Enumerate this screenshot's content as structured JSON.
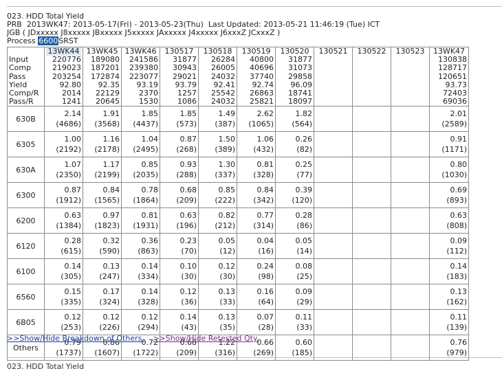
{
  "report": {
    "title": "023. HDD Total Yield",
    "prb_label": "PRB",
    "week": "2013WK47:",
    "date_range": "2013-05-17(Fri) - 2013-05-23(Thu)",
    "last_updated_label": "Last Updated:",
    "last_updated": "2013-05-21 11:46:19 (Tue) ICT",
    "jgb": "JGB ( JDxxxxx J8xxxxx JBxxxxx J5xxxxx JAxxxxx J4xxxxx J6xxxZ JCxxxZ )",
    "process_label": "Process",
    "process_code": "6600",
    "process_name": "SRST"
  },
  "columns": [
    "13WK44",
    "13WK45",
    "13WK46",
    "130517",
    "130518",
    "130519",
    "130520",
    "130521",
    "130522",
    "130523",
    "13WK47"
  ],
  "summary_labels": [
    "Input",
    "Comp",
    "Pass",
    "Yield",
    "Comp/R",
    "Pass/R"
  ],
  "summary_values": [
    [
      "220776",
      "219023",
      "203254",
      "92.80",
      "2014",
      "1241"
    ],
    [
      "189080",
      "187201",
      "172874",
      "92.35",
      "22129",
      "20645"
    ],
    [
      "241586",
      "239380",
      "223077",
      "93.19",
      "2370",
      "1530"
    ],
    [
      "31877",
      "30943",
      "29021",
      "93.79",
      "1257",
      "1086"
    ],
    [
      "26284",
      "26005",
      "24032",
      "92.41",
      "25542",
      "24032"
    ],
    [
      "40800",
      "40696",
      "37740",
      "92.74",
      "26863",
      "25821"
    ],
    [
      "31877",
      "31073",
      "29858",
      "96.09",
      "18741",
      "18097"
    ],
    [
      "",
      "",
      "",
      "",
      "",
      ""
    ],
    [
      "",
      "",
      "",
      "",
      "",
      ""
    ],
    [
      "",
      "",
      "",
      "",
      "",
      ""
    ],
    [
      "130838",
      "128717",
      "120651",
      "93.73",
      "72403",
      "69036"
    ]
  ],
  "rows": [
    {
      "label": "630B",
      "vals": [
        [
          "2.14",
          "(4686)"
        ],
        [
          "1.91",
          "(3568)"
        ],
        [
          "1.85",
          "(4437)"
        ],
        [
          "1.85",
          "(573)"
        ],
        [
          "1.49",
          "(387)"
        ],
        [
          "2.62",
          "(1065)"
        ],
        [
          "1.82",
          "(564)"
        ],
        [
          "",
          ""
        ],
        [
          "",
          ""
        ],
        [
          "",
          ""
        ],
        [
          "2.01",
          "(2589)"
        ]
      ]
    },
    {
      "label": "6305",
      "vals": [
        [
          "1.00",
          "(2192)"
        ],
        [
          "1.16",
          "(2178)"
        ],
        [
          "1.04",
          "(2495)"
        ],
        [
          "0.87",
          "(268)"
        ],
        [
          "1.50",
          "(389)"
        ],
        [
          "1.06",
          "(432)"
        ],
        [
          "0.26",
          "(82)"
        ],
        [
          "",
          ""
        ],
        [
          "",
          ""
        ],
        [
          "",
          ""
        ],
        [
          "0.91",
          "(1171)"
        ]
      ]
    },
    {
      "label": "630A",
      "vals": [
        [
          "1.07",
          "(2350)"
        ],
        [
          "1.17",
          "(2199)"
        ],
        [
          "0.85",
          "(2035)"
        ],
        [
          "0.93",
          "(288)"
        ],
        [
          "1.30",
          "(337)"
        ],
        [
          "0.81",
          "(328)"
        ],
        [
          "0.25",
          "(77)"
        ],
        [
          "",
          ""
        ],
        [
          "",
          ""
        ],
        [
          "",
          ""
        ],
        [
          "0.80",
          "(1030)"
        ]
      ]
    },
    {
      "label": "6300",
      "vals": [
        [
          "0.87",
          "(1912)"
        ],
        [
          "0.84",
          "(1565)"
        ],
        [
          "0.78",
          "(1864)"
        ],
        [
          "0.68",
          "(209)"
        ],
        [
          "0.85",
          "(222)"
        ],
        [
          "0.84",
          "(342)"
        ],
        [
          "0.39",
          "(120)"
        ],
        [
          "",
          ""
        ],
        [
          "",
          ""
        ],
        [
          "",
          ""
        ],
        [
          "0.69",
          "(893)"
        ]
      ]
    },
    {
      "label": "6200",
      "vals": [
        [
          "0.63",
          "(1384)"
        ],
        [
          "0.97",
          "(1823)"
        ],
        [
          "0.81",
          "(1931)"
        ],
        [
          "0.63",
          "(196)"
        ],
        [
          "0.82",
          "(212)"
        ],
        [
          "0.77",
          "(314)"
        ],
        [
          "0.28",
          "(86)"
        ],
        [
          "",
          ""
        ],
        [
          "",
          ""
        ],
        [
          "",
          ""
        ],
        [
          "0.63",
          "(808)"
        ]
      ]
    },
    {
      "label": "6120",
      "vals": [
        [
          "0.28",
          "(615)"
        ],
        [
          "0.32",
          "(590)"
        ],
        [
          "0.36",
          "(863)"
        ],
        [
          "0.23",
          "(70)"
        ],
        [
          "0.05",
          "(12)"
        ],
        [
          "0.04",
          "(16)"
        ],
        [
          "0.05",
          "(14)"
        ],
        [
          "",
          ""
        ],
        [
          "",
          ""
        ],
        [
          "",
          ""
        ],
        [
          "0.09",
          "(112)"
        ]
      ]
    },
    {
      "label": "6100",
      "vals": [
        [
          "0.14",
          "(305)"
        ],
        [
          "0.13",
          "(247)"
        ],
        [
          "0.14",
          "(334)"
        ],
        [
          "0.10",
          "(30)"
        ],
        [
          "0.12",
          "(30)"
        ],
        [
          "0.24",
          "(98)"
        ],
        [
          "0.08",
          "(25)"
        ],
        [
          "",
          ""
        ],
        [
          "",
          ""
        ],
        [
          "",
          ""
        ],
        [
          "0.14",
          "(183)"
        ]
      ]
    },
    {
      "label": "6560",
      "vals": [
        [
          "0.15",
          "(335)"
        ],
        [
          "0.17",
          "(324)"
        ],
        [
          "0.14",
          "(328)"
        ],
        [
          "0.12",
          "(36)"
        ],
        [
          "0.13",
          "(33)"
        ],
        [
          "0.16",
          "(64)"
        ],
        [
          "0.09",
          "(29)"
        ],
        [
          "",
          ""
        ],
        [
          "",
          ""
        ],
        [
          "",
          ""
        ],
        [
          "0.13",
          "(162)"
        ]
      ]
    },
    {
      "label": "6B05",
      "vals": [
        [
          "0.12",
          "(253)"
        ],
        [
          "0.12",
          "(226)"
        ],
        [
          "0.12",
          "(294)"
        ],
        [
          "0.14",
          "(43)"
        ],
        [
          "0.13",
          "(35)"
        ],
        [
          "0.07",
          "(28)"
        ],
        [
          "0.11",
          "(33)"
        ],
        [
          "",
          ""
        ],
        [
          "",
          ""
        ],
        [
          "",
          ""
        ],
        [
          "0.11",
          "(139)"
        ]
      ]
    },
    {
      "label": "Others",
      "vals": [
        [
          "0.79",
          "(1737)"
        ],
        [
          "0.86",
          "(1607)"
        ],
        [
          "0.72",
          "(1722)"
        ],
        [
          "0.68",
          "(209)"
        ],
        [
          "1.22",
          "(316)"
        ],
        [
          "0.66",
          "(269)"
        ],
        [
          "0.60",
          "(185)"
        ],
        [
          "",
          ""
        ],
        [
          "",
          ""
        ],
        [
          "",
          ""
        ],
        [
          "0.76",
          "(979)"
        ]
      ]
    }
  ],
  "links": {
    "breakdown": ">>Show/Hide Breakdown of Others.",
    "retested": ">>Show/Hide Retested Qty."
  },
  "footer_title": "023. HDD Total Yield",
  "icons": {
    "cursor_icon": "select-cursor-icon"
  }
}
